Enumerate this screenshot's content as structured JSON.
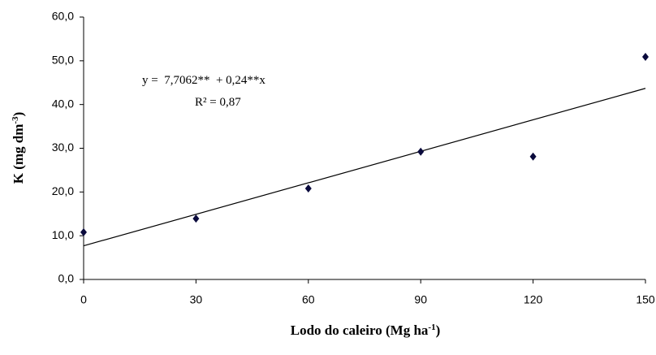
{
  "chart_data": {
    "type": "scatter",
    "x_label": [
      "Lodo do caleiro (Mg ha",
      "-1",
      ")"
    ],
    "y_label": [
      "K (mg dm",
      "-3",
      ")"
    ],
    "annotations": [
      "y =  7,7062**  + 0,24**x",
      "R² = 0,87"
    ],
    "x": [
      0,
      30,
      60,
      90,
      120,
      150
    ],
    "series": [
      {
        "color": "#0a0a3c",
        "values": [
          10.8,
          13.9,
          20.8,
          29.2,
          28.1,
          50.9
        ]
      }
    ],
    "trendline": {
      "x": [
        0,
        150
      ],
      "values": [
        7.7,
        43.7
      ],
      "color": "#000000"
    },
    "xlim": [
      0,
      150
    ],
    "xticks": [
      0,
      30,
      60,
      90,
      120,
      150
    ],
    "ylim": [
      0,
      60
    ],
    "yticks": [
      {
        "value": 0,
        "label": "0,0"
      },
      {
        "value": 10,
        "label": "10,0"
      },
      {
        "value": 20,
        "label": "20,0"
      },
      {
        "value": 30,
        "label": "30,0"
      },
      {
        "value": 40,
        "label": "40,0"
      },
      {
        "value": 50,
        "label": "50,0"
      },
      {
        "value": 60,
        "label": "60,0"
      }
    ],
    "grid": false
  }
}
